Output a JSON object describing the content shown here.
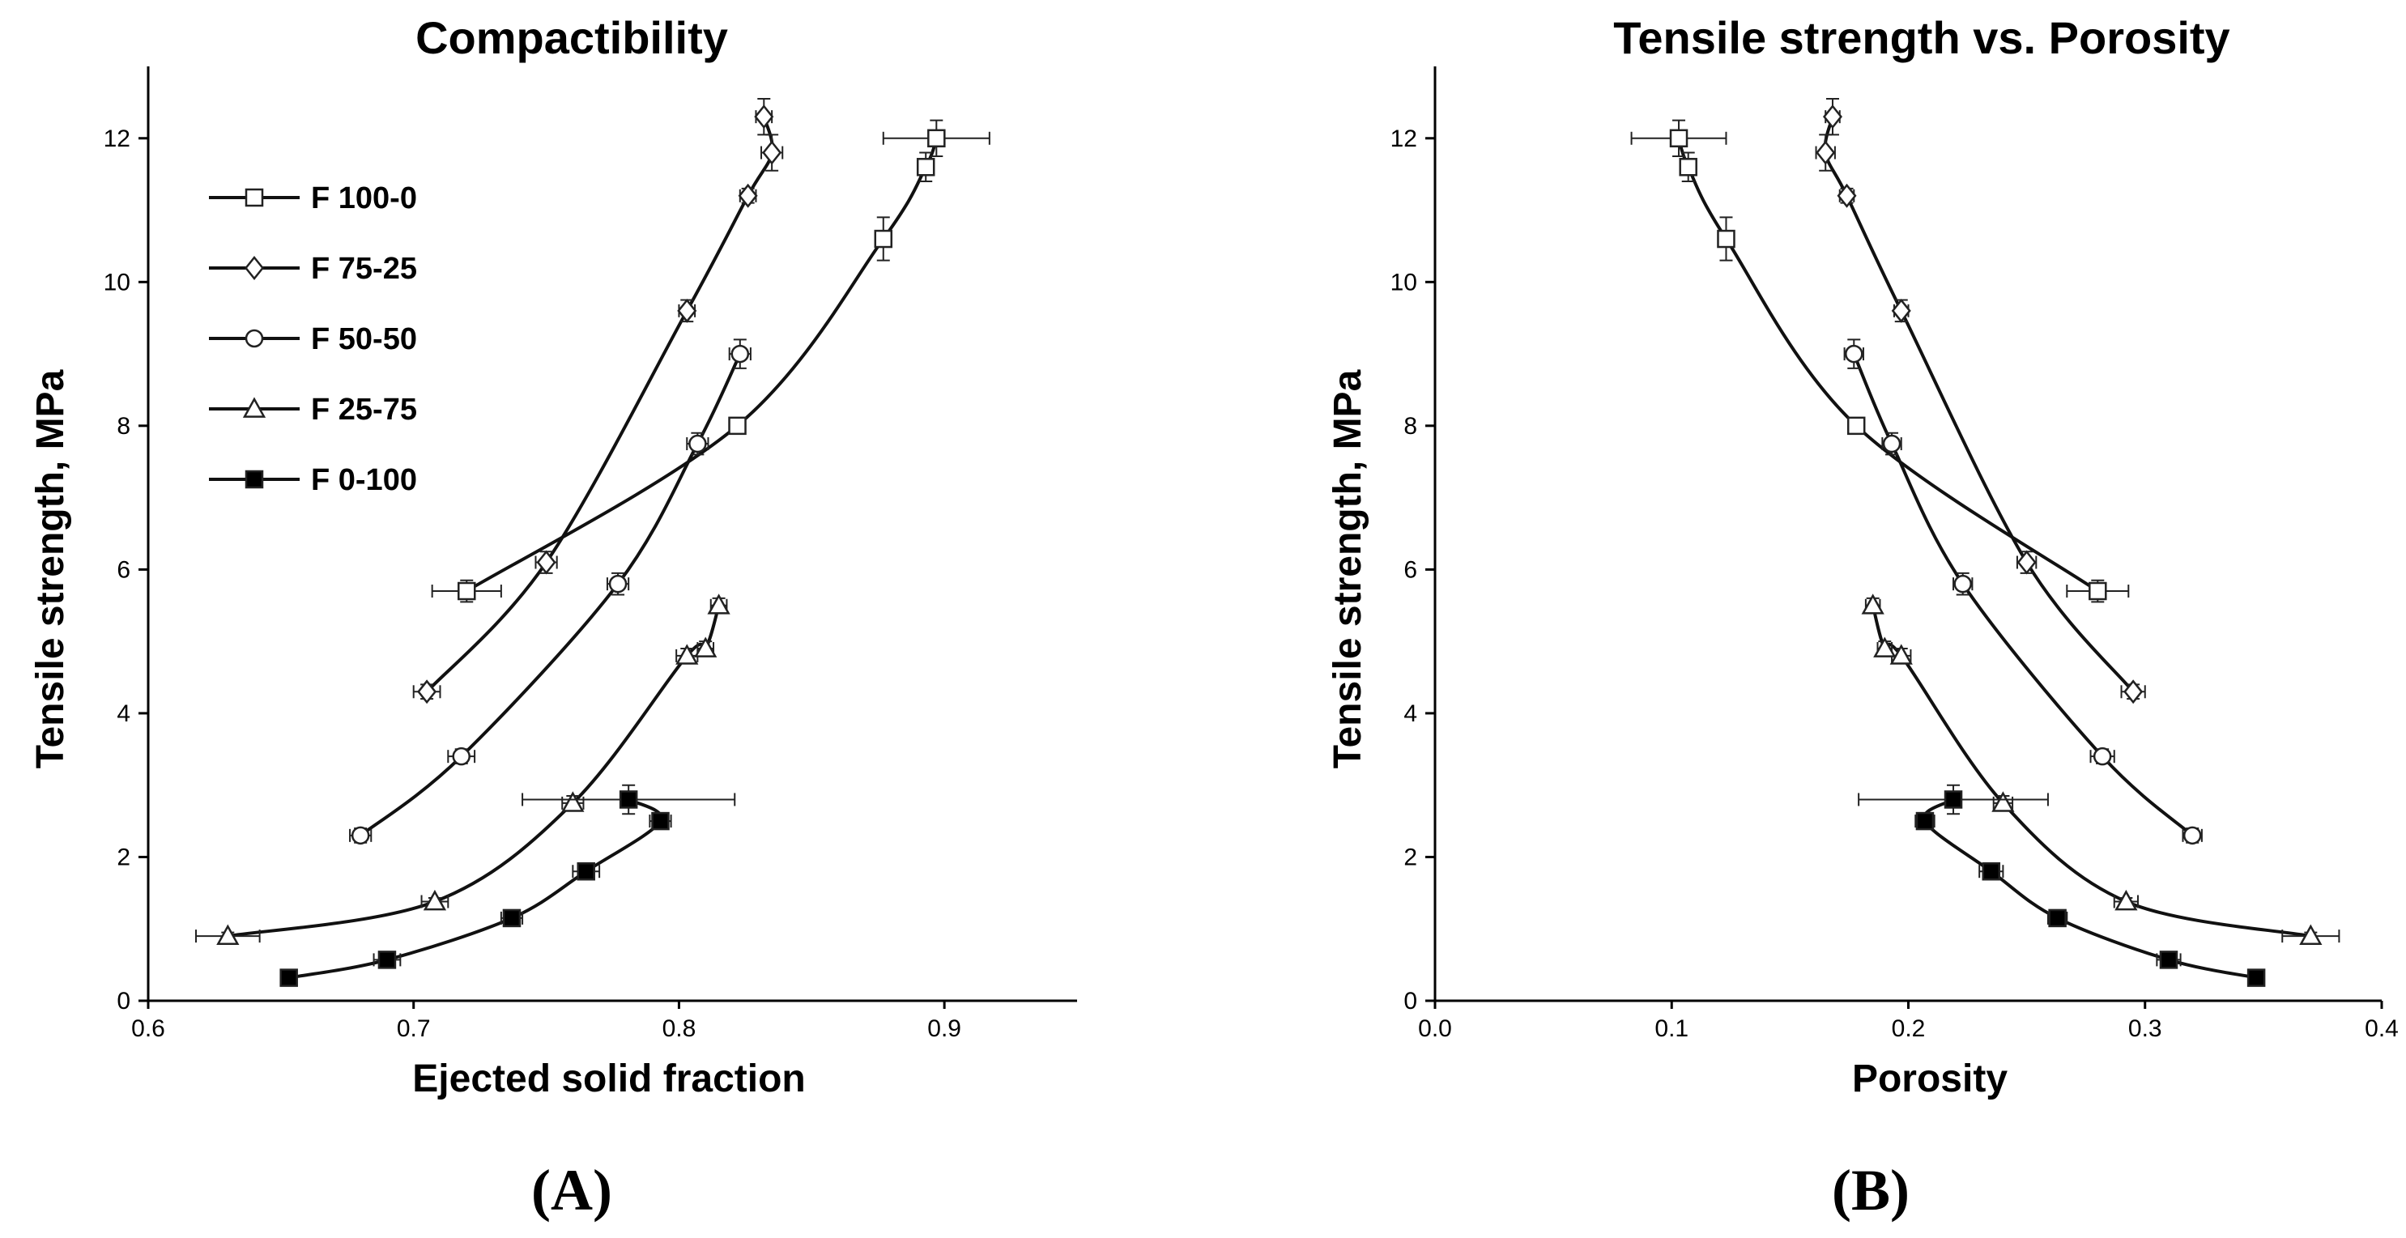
{
  "chart_data": [
    {
      "type": "line",
      "id": "A",
      "title": "Compactibility",
      "xlabel": "Ejected solid fraction",
      "ylabel": "Tensile strength, MPa",
      "panel_label": "(A)",
      "xlim": [
        0.6,
        0.95
      ],
      "ylim": [
        0,
        13
      ],
      "xticks": [
        0.6,
        0.7,
        0.8,
        0.9
      ],
      "xtick_labels": [
        "0.6",
        "0.7",
        "0.8",
        "0.9"
      ],
      "yticks": [
        0,
        2,
        4,
        6,
        8,
        10,
        12
      ],
      "ytick_labels": [
        "0",
        "2",
        "4",
        "6",
        "8",
        "10",
        "12"
      ],
      "legend_position": "top-left",
      "series": [
        {
          "name": "F 100-0",
          "marker": "square-open",
          "x": [
            0.72,
            0.822,
            0.877,
            0.893,
            0.897
          ],
          "y": [
            5.7,
            8.0,
            10.6,
            11.6,
            12.0
          ],
          "xerr": [
            0.013,
            0.002,
            0.003,
            0.003,
            0.02
          ],
          "yerr": [
            0.15,
            0.1,
            0.3,
            0.2,
            0.25
          ]
        },
        {
          "name": "F 75-25",
          "marker": "diamond-open",
          "x": [
            0.705,
            0.75,
            0.803,
            0.826,
            0.832,
            0.835
          ],
          "y": [
            4.3,
            6.1,
            9.6,
            11.2,
            12.3,
            11.8
          ],
          "xerr": [
            0.005,
            0.004,
            0.003,
            0.003,
            0.003,
            0.004
          ],
          "yerr": [
            0.1,
            0.15,
            0.15,
            0.1,
            0.25,
            0.25
          ]
        },
        {
          "name": "F 50-50",
          "marker": "circle-open",
          "x": [
            0.68,
            0.718,
            0.777,
            0.807,
            0.823
          ],
          "y": [
            2.3,
            3.4,
            5.8,
            7.75,
            9.0
          ],
          "xerr": [
            0.004,
            0.005,
            0.004,
            0.004,
            0.004
          ],
          "yerr": [
            0.1,
            0.1,
            0.15,
            0.15,
            0.2
          ]
        },
        {
          "name": "F 25-75",
          "marker": "triangle-open",
          "x": [
            0.63,
            0.708,
            0.76,
            0.803,
            0.81,
            0.815
          ],
          "y": [
            0.9,
            1.38,
            2.75,
            4.8,
            4.9,
            5.5
          ],
          "xerr": [
            0.012,
            0.005,
            0.004,
            0.004,
            0.003,
            0.003
          ],
          "yerr": [
            0.05,
            0.05,
            0.1,
            0.1,
            0.1,
            0.1
          ]
        },
        {
          "name": "F 0-100",
          "marker": "square-filled",
          "x": [
            0.653,
            0.69,
            0.737,
            0.765,
            0.793,
            0.781
          ],
          "y": [
            0.32,
            0.57,
            1.15,
            1.8,
            2.5,
            2.8
          ],
          "xerr": [
            0.002,
            0.005,
            0.004,
            0.005,
            0.004,
            0.04
          ],
          "yerr": [
            0.05,
            0.05,
            0.05,
            0.05,
            0.05,
            0.2
          ]
        }
      ]
    },
    {
      "type": "line",
      "id": "B",
      "title": "Tensile strength vs. Porosity",
      "xlabel": "Porosity",
      "ylabel": "Tensile strength, MPa",
      "panel_label": "(B)",
      "xlim": [
        0.0,
        0.4
      ],
      "ylim": [
        0,
        13
      ],
      "xticks": [
        0.0,
        0.1,
        0.2,
        0.3,
        0.4
      ],
      "xtick_labels": [
        "0.0",
        "0.1",
        "0.2",
        "0.3",
        "0.4"
      ],
      "yticks": [
        0,
        2,
        4,
        6,
        8,
        10,
        12
      ],
      "ytick_labels": [
        "0",
        "2",
        "4",
        "6",
        "8",
        "10",
        "12"
      ],
      "series": [
        {
          "name": "F 100-0",
          "marker": "square-open",
          "x": [
            0.28,
            0.178,
            0.123,
            0.107,
            0.103
          ],
          "y": [
            5.7,
            8.0,
            10.6,
            11.6,
            12.0
          ],
          "xerr": [
            0.013,
            0.002,
            0.003,
            0.003,
            0.02
          ],
          "yerr": [
            0.15,
            0.1,
            0.3,
            0.2,
            0.25
          ]
        },
        {
          "name": "F 75-25",
          "marker": "diamond-open",
          "x": [
            0.295,
            0.25,
            0.197,
            0.174,
            0.168,
            0.165
          ],
          "y": [
            4.3,
            6.1,
            9.6,
            11.2,
            12.3,
            11.8
          ],
          "xerr": [
            0.005,
            0.004,
            0.003,
            0.003,
            0.003,
            0.004
          ],
          "yerr": [
            0.1,
            0.15,
            0.15,
            0.1,
            0.25,
            0.25
          ]
        },
        {
          "name": "F 50-50",
          "marker": "circle-open",
          "x": [
            0.32,
            0.282,
            0.223,
            0.193,
            0.177
          ],
          "y": [
            2.3,
            3.4,
            5.8,
            7.75,
            9.0
          ],
          "xerr": [
            0.004,
            0.005,
            0.004,
            0.004,
            0.004
          ],
          "yerr": [
            0.1,
            0.1,
            0.15,
            0.15,
            0.2
          ]
        },
        {
          "name": "F 25-75",
          "marker": "triangle-open",
          "x": [
            0.37,
            0.292,
            0.24,
            0.197,
            0.19,
            0.185
          ],
          "y": [
            0.9,
            1.38,
            2.75,
            4.8,
            4.9,
            5.5
          ],
          "xerr": [
            0.012,
            0.005,
            0.004,
            0.004,
            0.003,
            0.003
          ],
          "yerr": [
            0.05,
            0.05,
            0.1,
            0.1,
            0.1,
            0.1
          ]
        },
        {
          "name": "F 0-100",
          "marker": "square-filled",
          "x": [
            0.347,
            0.31,
            0.263,
            0.235,
            0.207,
            0.219
          ],
          "y": [
            0.32,
            0.57,
            1.15,
            1.8,
            2.5,
            2.8
          ],
          "xerr": [
            0.002,
            0.005,
            0.004,
            0.005,
            0.004,
            0.04
          ],
          "yerr": [
            0.05,
            0.05,
            0.05,
            0.05,
            0.05,
            0.2
          ]
        }
      ]
    }
  ]
}
